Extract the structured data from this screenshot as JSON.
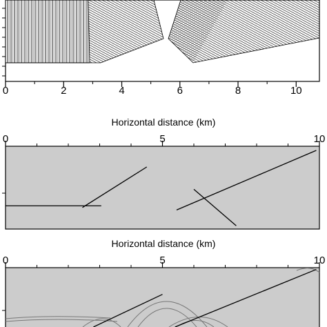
{
  "figure": {
    "panels": [
      {
        "id": "model",
        "xlabel": "",
        "xlim": [
          0,
          10.8
        ],
        "xticks": [
          0,
          2,
          4,
          6,
          8,
          10
        ],
        "blocks": [
          {
            "name": "vertical-layered-block",
            "x_range": [
              0,
              2.9
            ],
            "pattern": "vertical-lines"
          },
          {
            "name": "dipping-block-left",
            "x_range": [
              3.0,
              5.1
            ],
            "pattern": "dipping-lines"
          },
          {
            "name": "dipping-block-right",
            "x_range": [
              5.9,
              10.8
            ],
            "pattern": "dipping-lines"
          }
        ]
      },
      {
        "id": "migrated-image-1",
        "xlabel": "Horizontal distance (km)",
        "xlim": [
          0,
          10
        ],
        "xticks": [
          0,
          5,
          10
        ],
        "events": [
          {
            "name": "flat-reflector",
            "x": [
              0.0,
              3.05
            ],
            "z": [
              0.72,
              0.72
            ]
          },
          {
            "name": "dipping-reflector-left",
            "x": [
              2.45,
              4.5
            ],
            "z": [
              0.74,
              0.25
            ]
          },
          {
            "name": "dipping-reflector-right",
            "x": [
              5.45,
              9.9
            ],
            "z": [
              0.77,
              0.05
            ]
          },
          {
            "name": "crossing-reflector",
            "x": [
              6.0,
              7.35
            ],
            "z": [
              0.52,
              0.96
            ]
          }
        ]
      },
      {
        "id": "migrated-image-2",
        "xlabel": "Horizontal distance (km)",
        "xlim": [
          0,
          10
        ],
        "xticks": [
          0,
          5,
          10
        ],
        "events": [
          {
            "name": "dipping-reflector-left",
            "x": [
              2.8,
              5.0
            ],
            "z": [
              1.0,
              0.45
            ]
          },
          {
            "name": "dipping-reflector-right",
            "x": [
              5.4,
              9.9
            ],
            "z": [
              1.0,
              0.03
            ]
          }
        ]
      }
    ]
  }
}
